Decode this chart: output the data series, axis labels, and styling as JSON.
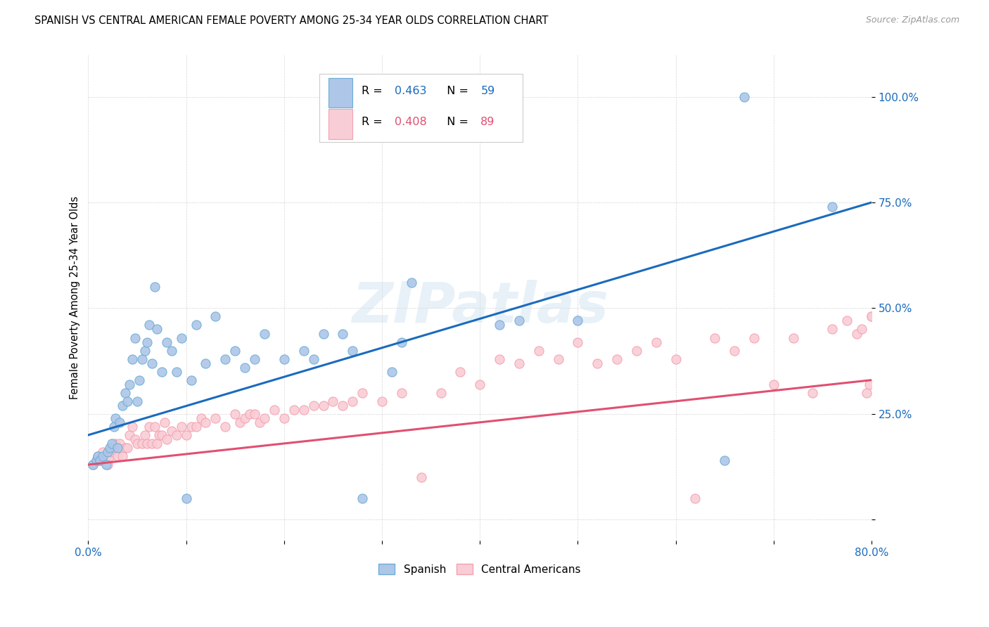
{
  "title": "SPANISH VS CENTRAL AMERICAN FEMALE POVERTY AMONG 25-34 YEAR OLDS CORRELATION CHART",
  "source": "Source: ZipAtlas.com",
  "ylabel": "Female Poverty Among 25-34 Year Olds",
  "xlim": [
    0.0,
    0.8
  ],
  "ylim": [
    -0.05,
    1.1
  ],
  "xticks": [
    0.0,
    0.1,
    0.2,
    0.3,
    0.4,
    0.5,
    0.6,
    0.7,
    0.8
  ],
  "xticklabels": [
    "0.0%",
    "",
    "",
    "",
    "",
    "",
    "",
    "",
    "80.0%"
  ],
  "ytick_positions": [
    0.0,
    0.25,
    0.5,
    0.75,
    1.0
  ],
  "ytick_labels_right": [
    "",
    "25.0%",
    "50.0%",
    "75.0%",
    "100.0%"
  ],
  "spanish_color": "#6baed6",
  "spanish_face": "#aec6e8",
  "central_color": "#f4a0b0",
  "central_face": "#f9cdd5",
  "trend_blue": "#1a6bbd",
  "trend_pink": "#e05070",
  "watermark": "ZIPatlas",
  "legend_R_spanish": "0.463",
  "legend_N_spanish": "59",
  "legend_R_central": "0.408",
  "legend_N_central": "89",
  "blue_trend_start": 0.2,
  "blue_trend_end": 0.75,
  "pink_trend_start": 0.13,
  "pink_trend_end": 0.33,
  "spanish_x": [
    0.005,
    0.008,
    0.01,
    0.012,
    0.015,
    0.018,
    0.02,
    0.022,
    0.024,
    0.026,
    0.028,
    0.03,
    0.032,
    0.035,
    0.038,
    0.04,
    0.042,
    0.045,
    0.048,
    0.05,
    0.052,
    0.055,
    0.058,
    0.06,
    0.062,
    0.065,
    0.068,
    0.07,
    0.075,
    0.08,
    0.085,
    0.09,
    0.095,
    0.1,
    0.105,
    0.11,
    0.12,
    0.13,
    0.14,
    0.15,
    0.16,
    0.17,
    0.18,
    0.2,
    0.22,
    0.23,
    0.24,
    0.26,
    0.27,
    0.28,
    0.31,
    0.32,
    0.33,
    0.42,
    0.44,
    0.5,
    0.65,
    0.67,
    0.76
  ],
  "spanish_y": [
    0.13,
    0.14,
    0.15,
    0.14,
    0.15,
    0.13,
    0.16,
    0.17,
    0.18,
    0.22,
    0.24,
    0.17,
    0.23,
    0.27,
    0.3,
    0.28,
    0.32,
    0.38,
    0.43,
    0.28,
    0.33,
    0.38,
    0.4,
    0.42,
    0.46,
    0.37,
    0.55,
    0.45,
    0.35,
    0.42,
    0.4,
    0.35,
    0.43,
    0.05,
    0.33,
    0.46,
    0.37,
    0.48,
    0.38,
    0.4,
    0.36,
    0.38,
    0.44,
    0.38,
    0.4,
    0.38,
    0.44,
    0.44,
    0.4,
    0.05,
    0.35,
    0.42,
    0.56,
    0.46,
    0.47,
    0.47,
    0.14,
    1.0,
    0.74
  ],
  "central_x": [
    0.005,
    0.008,
    0.01,
    0.012,
    0.015,
    0.018,
    0.02,
    0.022,
    0.024,
    0.026,
    0.028,
    0.03,
    0.032,
    0.035,
    0.038,
    0.04,
    0.042,
    0.045,
    0.048,
    0.05,
    0.055,
    0.058,
    0.06,
    0.062,
    0.065,
    0.068,
    0.07,
    0.072,
    0.075,
    0.078,
    0.08,
    0.085,
    0.09,
    0.095,
    0.1,
    0.105,
    0.11,
    0.115,
    0.12,
    0.13,
    0.14,
    0.15,
    0.155,
    0.16,
    0.165,
    0.17,
    0.175,
    0.18,
    0.19,
    0.2,
    0.21,
    0.22,
    0.23,
    0.24,
    0.25,
    0.26,
    0.27,
    0.28,
    0.3,
    0.32,
    0.34,
    0.36,
    0.38,
    0.4,
    0.42,
    0.44,
    0.46,
    0.48,
    0.5,
    0.52,
    0.54,
    0.56,
    0.58,
    0.6,
    0.62,
    0.64,
    0.66,
    0.68,
    0.7,
    0.72,
    0.74,
    0.76,
    0.775,
    0.785,
    0.79,
    0.795,
    0.798,
    0.8,
    0.8
  ],
  "central_y": [
    0.13,
    0.14,
    0.15,
    0.14,
    0.16,
    0.15,
    0.13,
    0.15,
    0.16,
    0.17,
    0.18,
    0.15,
    0.18,
    0.15,
    0.17,
    0.17,
    0.2,
    0.22,
    0.19,
    0.18,
    0.18,
    0.2,
    0.18,
    0.22,
    0.18,
    0.22,
    0.18,
    0.2,
    0.2,
    0.23,
    0.19,
    0.21,
    0.2,
    0.22,
    0.2,
    0.22,
    0.22,
    0.24,
    0.23,
    0.24,
    0.22,
    0.25,
    0.23,
    0.24,
    0.25,
    0.25,
    0.23,
    0.24,
    0.26,
    0.24,
    0.26,
    0.26,
    0.27,
    0.27,
    0.28,
    0.27,
    0.28,
    0.3,
    0.28,
    0.3,
    0.1,
    0.3,
    0.35,
    0.32,
    0.38,
    0.37,
    0.4,
    0.38,
    0.42,
    0.37,
    0.38,
    0.4,
    0.42,
    0.38,
    0.05,
    0.43,
    0.4,
    0.43,
    0.32,
    0.43,
    0.3,
    0.45,
    0.47,
    0.44,
    0.45,
    0.3,
    0.32,
    0.48,
    0.48
  ]
}
